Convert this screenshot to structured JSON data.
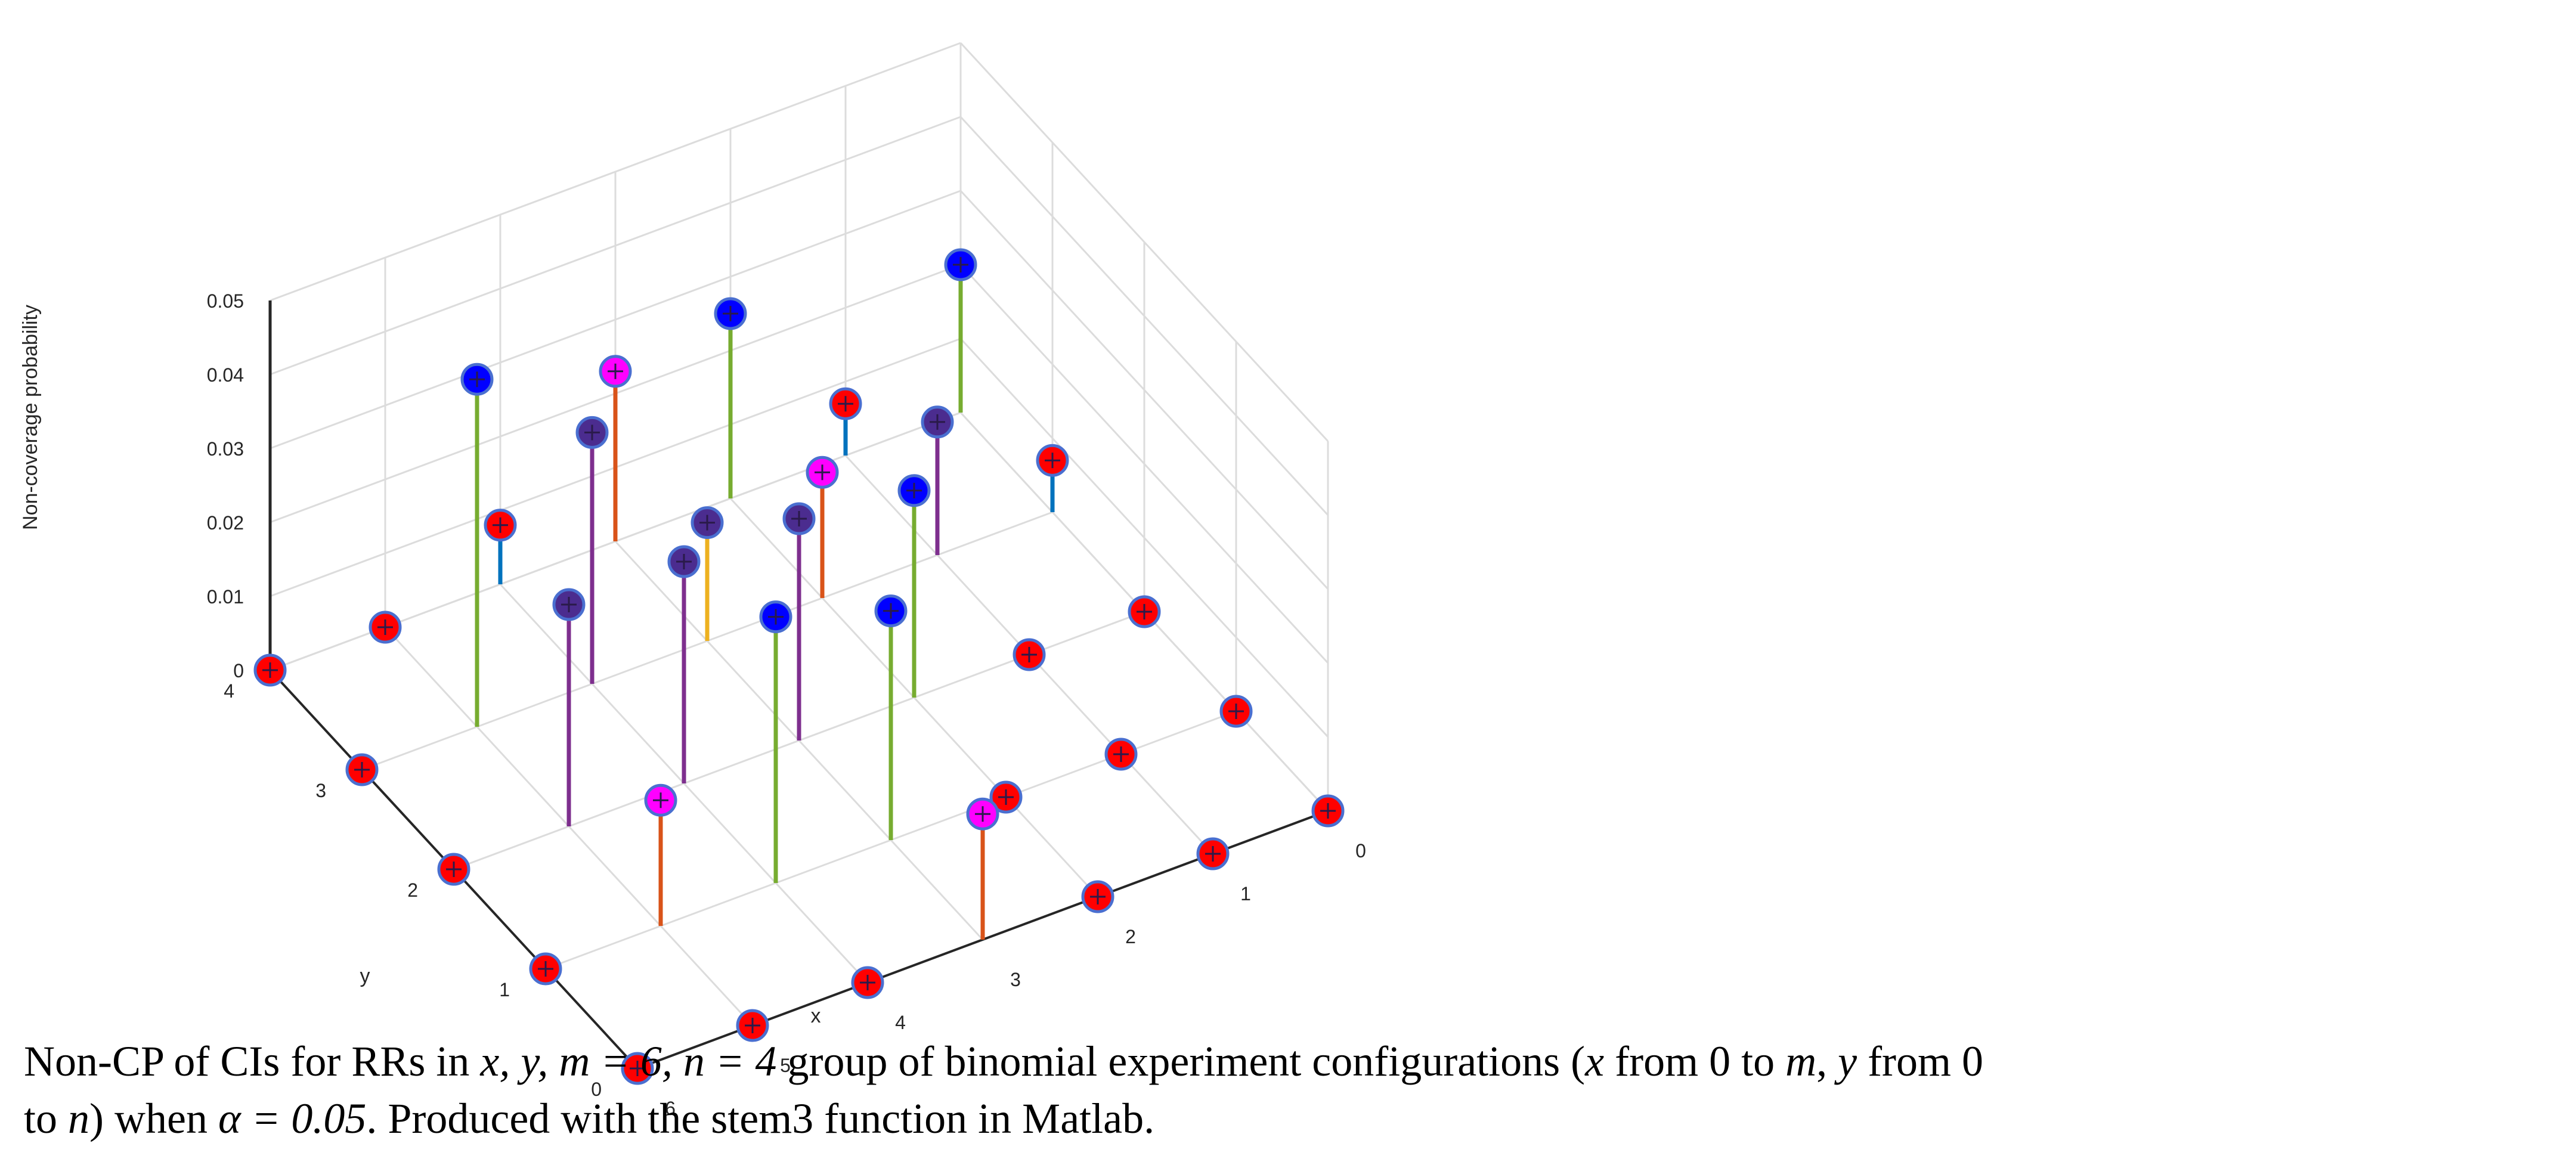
{
  "chart_data": {
    "type": "scatter",
    "subtype": "stem3",
    "xlabel": "x",
    "ylabel": "y",
    "zlabel": "Non-coverage probability",
    "x_ticks": [
      "0",
      "1",
      "2",
      "3",
      "4",
      "5",
      "6"
    ],
    "y_ticks": [
      "0",
      "1",
      "2",
      "3",
      "4"
    ],
    "z_ticks": [
      "0",
      "0.01",
      "0.02",
      "0.03",
      "0.04",
      "0.05"
    ],
    "xlim": [
      0,
      6
    ],
    "ylim": [
      0,
      4
    ],
    "zlim": [
      0,
      0.05
    ],
    "grid": true,
    "colors": {
      "blue": "#0072bd",
      "orange": "#d95319",
      "yellow": "#edb120",
      "purple": "#7e2f8e",
      "green": "#77ac30",
      "red_marker": "#ff0000",
      "blue_marker": "#0000ff",
      "magenta_marker": "#ff00ff",
      "purple_marker": "#4b2c8f"
    },
    "points": [
      {
        "x": 0,
        "y": 0,
        "z": 0,
        "stem": "blue",
        "marker": "red_marker"
      },
      {
        "x": 0,
        "y": 1,
        "z": 0,
        "stem": "blue",
        "marker": "red_marker"
      },
      {
        "x": 0,
        "y": 2,
        "z": 0,
        "stem": "blue",
        "marker": "red_marker"
      },
      {
        "x": 0,
        "y": 3,
        "z": 0.007,
        "stem": "blue",
        "marker": "red_marker"
      },
      {
        "x": 0,
        "y": 4,
        "z": 0.02,
        "stem": "green",
        "marker": "blue_marker"
      },
      {
        "x": 1,
        "y": 0,
        "z": 0,
        "stem": "blue",
        "marker": "red_marker"
      },
      {
        "x": 1,
        "y": 1,
        "z": 0,
        "stem": "blue",
        "marker": "red_marker"
      },
      {
        "x": 1,
        "y": 2,
        "z": 0,
        "stem": "blue",
        "marker": "red_marker"
      },
      {
        "x": 1,
        "y": 3,
        "z": 0.018,
        "stem": "purple",
        "marker": "purple_marker"
      },
      {
        "x": 1,
        "y": 4,
        "z": 0.007,
        "stem": "blue",
        "marker": "red_marker"
      },
      {
        "x": 2,
        "y": 0,
        "z": 0,
        "stem": "blue",
        "marker": "red_marker"
      },
      {
        "x": 2,
        "y": 1,
        "z": 0,
        "stem": "blue",
        "marker": "red_marker"
      },
      {
        "x": 2,
        "y": 2,
        "z": 0.028,
        "stem": "green",
        "marker": "blue_marker"
      },
      {
        "x": 2,
        "y": 3,
        "z": 0.017,
        "stem": "orange",
        "marker": "magenta_marker"
      },
      {
        "x": 2,
        "y": 4,
        "z": 0.025,
        "stem": "green",
        "marker": "blue_marker"
      },
      {
        "x": 3,
        "y": 0,
        "z": 0.017,
        "stem": "orange",
        "marker": "magenta_marker"
      },
      {
        "x": 3,
        "y": 1,
        "z": 0.031,
        "stem": "green",
        "marker": "blue_marker"
      },
      {
        "x": 3,
        "y": 2,
        "z": 0.03,
        "stem": "purple",
        "marker": "purple_marker"
      },
      {
        "x": 3,
        "y": 3,
        "z": 0.016,
        "stem": "yellow",
        "marker": "purple_marker"
      },
      {
        "x": 3,
        "y": 4,
        "z": 0.023,
        "stem": "orange",
        "marker": "magenta_marker"
      },
      {
        "x": 4,
        "y": 0,
        "z": 0,
        "stem": "blue",
        "marker": "red_marker"
      },
      {
        "x": 4,
        "y": 1,
        "z": 0.036,
        "stem": "green",
        "marker": "blue_marker"
      },
      {
        "x": 4,
        "y": 2,
        "z": 0.03,
        "stem": "purple",
        "marker": "purple_marker"
      },
      {
        "x": 4,
        "y": 3,
        "z": 0.034,
        "stem": "purple",
        "marker": "purple_marker"
      },
      {
        "x": 4,
        "y": 4,
        "z": 0.008,
        "stem": "blue",
        "marker": "red_marker"
      },
      {
        "x": 5,
        "y": 0,
        "z": 0,
        "stem": "blue",
        "marker": "red_marker"
      },
      {
        "x": 5,
        "y": 1,
        "z": 0.017,
        "stem": "orange",
        "marker": "magenta_marker"
      },
      {
        "x": 5,
        "y": 2,
        "z": 0.03,
        "stem": "purple",
        "marker": "purple_marker"
      },
      {
        "x": 5,
        "y": 3,
        "z": 0.047,
        "stem": "green",
        "marker": "blue_marker"
      },
      {
        "x": 5,
        "y": 4,
        "z": 0,
        "stem": "blue",
        "marker": "red_marker"
      },
      {
        "x": 6,
        "y": 0,
        "z": 0,
        "stem": "blue",
        "marker": "red_marker"
      },
      {
        "x": 6,
        "y": 1,
        "z": 0,
        "stem": "blue",
        "marker": "red_marker"
      },
      {
        "x": 6,
        "y": 2,
        "z": 0,
        "stem": "blue",
        "marker": "red_marker"
      },
      {
        "x": 6,
        "y": 3,
        "z": 0,
        "stem": "blue",
        "marker": "red_marker"
      },
      {
        "x": 6,
        "y": 4,
        "z": 0,
        "stem": "blue",
        "marker": "red_marker"
      }
    ]
  },
  "caption": {
    "line1_a": "Non-CP of CIs for RRs in ",
    "line1_math1": "x, y, m = 6, n = 4",
    "line1_b": " group of binomial experiment configurations (",
    "line1_math2": "x",
    "line1_c": " from 0 to ",
    "line1_math3": "m",
    "line1_d": ", ",
    "line1_math4": "y",
    "line1_e": " from 0",
    "line2_a": "to ",
    "line2_math1": "n",
    "line2_b": ") when ",
    "line2_math2": "α = 0.05",
    "line2_c": ". Produced with the stem3 function in Matlab."
  }
}
